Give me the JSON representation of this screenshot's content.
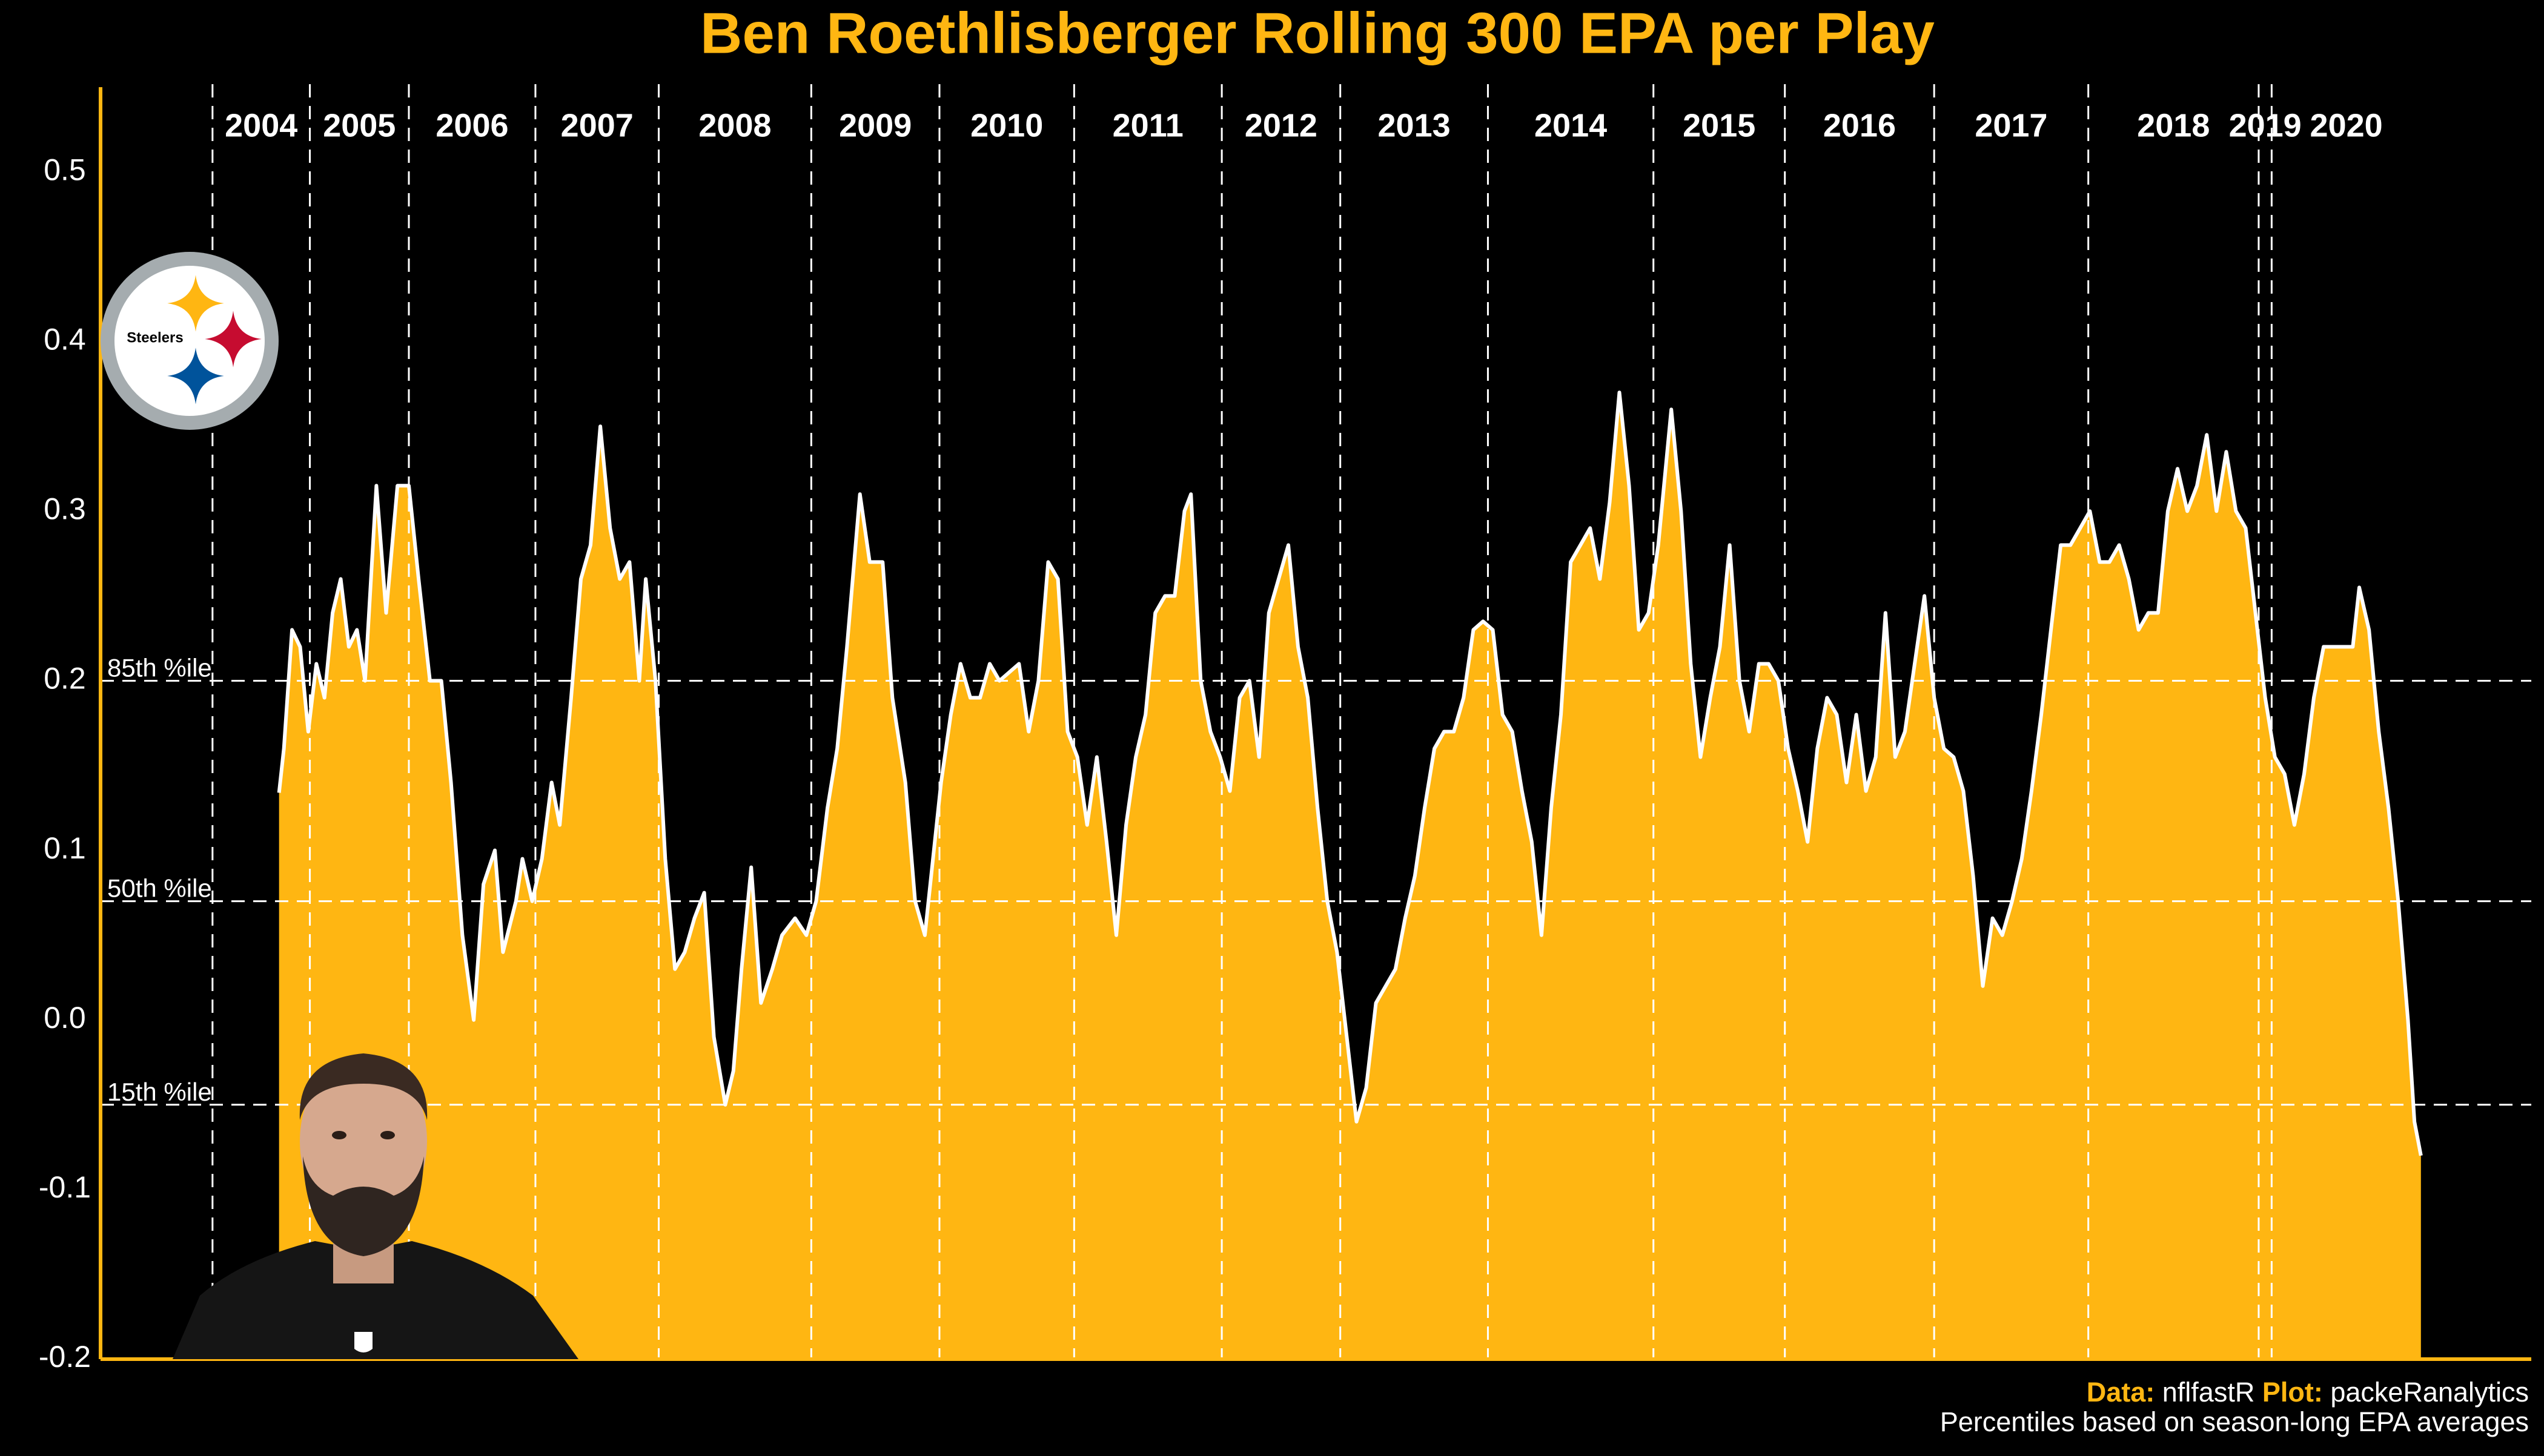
{
  "chart_data": {
    "type": "area",
    "title": "Ben Roethlisberger Rolling 300 EPA per Play",
    "caption_data_label": "Data:",
    "caption_data_value": "nflfastR",
    "caption_plot_label": "Plot:",
    "caption_plot_value": "packeRanalytics",
    "caption_note": "Percentiles based on season-long EPA averages",
    "logo_label": "Steelers",
    "color": "#FFB612",
    "line_color": "#ffffff",
    "axis_color": "#FFB612",
    "xlim": [
      0,
      8988
    ],
    "ylim": [
      -0.2,
      0.55
    ],
    "yticks": [
      -0.2,
      -0.1,
      {
        "value": 0,
        "label": "0.0"
      },
      0.1,
      0.2,
      0.3,
      0.4,
      0.5
    ],
    "reference_lines": [
      {
        "value": 0.2,
        "label": "85th %ile"
      },
      {
        "value": 0.07,
        "label": "50th %ile"
      },
      {
        "value": -0.05,
        "label": "15th %ile"
      }
    ],
    "seasons": [
      {
        "label": "2004",
        "start": 414
      },
      {
        "label": "2005",
        "start": 774
      },
      {
        "label": "2006",
        "start": 1140
      },
      {
        "label": "2007",
        "start": 1608
      },
      {
        "label": "2008",
        "start": 2064
      },
      {
        "label": "2009",
        "start": 2628
      },
      {
        "label": "2010",
        "start": 3102
      },
      {
        "label": "2011",
        "start": 3600
      },
      {
        "label": "2012",
        "start": 4146
      },
      {
        "label": "2013",
        "start": 4584
      },
      {
        "label": "2014",
        "start": 5130
      },
      {
        "label": "2015",
        "start": 5742
      },
      {
        "label": "2016",
        "start": 6228
      },
      {
        "label": "2017",
        "start": 6780
      },
      {
        "label": "2018",
        "start": 7350
      },
      {
        "label": "2019",
        "start": 7980
      },
      {
        "label": "2020",
        "start": 8028
      }
    ],
    "x": [
      660,
      678,
      708,
      738,
      768,
      798,
      828,
      858,
      888,
      918,
      948,
      978,
      1020,
      1056,
      1098,
      1140,
      1176,
      1218,
      1260,
      1296,
      1338,
      1380,
      1416,
      1458,
      1488,
      1536,
      1560,
      1596,
      1632,
      1668,
      1698,
      1740,
      1776,
      1812,
      1848,
      1884,
      1920,
      1956,
      1992,
      2016,
      2052,
      2088,
      2124,
      2160,
      2196,
      2232,
      2268,
      2310,
      2340,
      2370,
      2406,
      2442,
      2484,
      2520,
      2568,
      2610,
      2646,
      2688,
      2724,
      2760,
      2808,
      2844,
      2892,
      2928,
      2976,
      3012,
      3048,
      3078,
      3108,
      3144,
      3180,
      3216,
      3252,
      3288,
      3324,
      3360,
      3396,
      3432,
      3468,
      3504,
      3540,
      3576,
      3612,
      3648,
      3684,
      3720,
      3756,
      3792,
      3828,
      3864,
      3900,
      3936,
      3972,
      4008,
      4032,
      4068,
      4104,
      4140,
      4176,
      4212,
      4248,
      4284,
      4320,
      4356,
      4392,
      4428,
      4464,
      4500,
      4536,
      4572,
      4608,
      4644,
      4680,
      4716,
      4752,
      4788,
      4824,
      4860,
      4896,
      4932,
      4968,
      5004,
      5040,
      5076,
      5112,
      5148,
      5184,
      5220,
      5256,
      5292,
      5328,
      5364,
      5400,
      5436,
      5472,
      5508,
      5544,
      5580,
      5616,
      5652,
      5688,
      5724,
      5760,
      5808,
      5844,
      5880,
      5916,
      5952,
      5988,
      6024,
      6060,
      6096,
      6132,
      6168,
      6204,
      6240,
      6276,
      6312,
      6348,
      6384,
      6420,
      6456,
      6492,
      6528,
      6564,
      6600,
      6636,
      6672,
      6708,
      6744,
      6780,
      6816,
      6852,
      6888,
      6924,
      6960,
      6996,
      7032,
      7068,
      7104,
      7140,
      7176,
      7212,
      7248,
      7284,
      7320,
      7356,
      7392,
      7428,
      7464,
      7500,
      7536,
      7572,
      7608,
      7644,
      7680,
      7716,
      7752,
      7788,
      7824,
      7860,
      7896,
      7932,
      7968,
      8004,
      8040,
      8076,
      8112,
      8148,
      8184,
      8220,
      8256,
      8292,
      8328,
      8352,
      8388,
      8424,
      8460,
      8496,
      8532,
      8556,
      8580
    ],
    "values": [
      0.134,
      0.16,
      0.23,
      0.22,
      0.17,
      0.21,
      0.19,
      0.24,
      0.26,
      0.22,
      0.23,
      0.2,
      0.315,
      0.24,
      0.315,
      0.315,
      0.26,
      0.2,
      0.2,
      0.14,
      0.05,
      0.0,
      0.08,
      0.1,
      0.04,
      0.07,
      0.095,
      0.07,
      0.095,
      0.14,
      0.115,
      0.19,
      0.26,
      0.28,
      0.35,
      0.29,
      0.26,
      0.27,
      0.2,
      0.26,
      0.2,
      0.095,
      0.03,
      0.04,
      0.06,
      0.075,
      -0.01,
      -0.05,
      -0.03,
      0.03,
      0.09,
      0.01,
      0.03,
      0.05,
      0.06,
      0.05,
      0.07,
      0.125,
      0.16,
      0.22,
      0.31,
      0.27,
      0.27,
      0.19,
      0.14,
      0.07,
      0.05,
      0.095,
      0.14,
      0.18,
      0.21,
      0.19,
      0.19,
      0.21,
      0.2,
      0.205,
      0.21,
      0.17,
      0.2,
      0.27,
      0.26,
      0.17,
      0.155,
      0.115,
      0.155,
      0.105,
      0.05,
      0.115,
      0.155,
      0.18,
      0.24,
      0.25,
      0.25,
      0.3,
      0.31,
      0.2,
      0.17,
      0.155,
      0.135,
      0.19,
      0.2,
      0.155,
      0.24,
      0.26,
      0.28,
      0.22,
      0.19,
      0.125,
      0.07,
      0.04,
      -0.01,
      -0.06,
      -0.04,
      0.01,
      0.02,
      0.03,
      0.06,
      0.085,
      0.125,
      0.16,
      0.17,
      0.17,
      0.19,
      0.23,
      0.235,
      0.23,
      0.18,
      0.17,
      0.135,
      0.105,
      0.05,
      0.125,
      0.18,
      0.27,
      0.28,
      0.29,
      0.26,
      0.305,
      0.37,
      0.315,
      0.23,
      0.24,
      0.28,
      0.36,
      0.3,
      0.21,
      0.155,
      0.19,
      0.22,
      0.28,
      0.2,
      0.17,
      0.21,
      0.21,
      0.2,
      0.16,
      0.135,
      0.105,
      0.16,
      0.19,
      0.18,
      0.14,
      0.18,
      0.135,
      0.155,
      0.24,
      0.155,
      0.17,
      0.21,
      0.25,
      0.19,
      0.16,
      0.155,
      0.135,
      0.085,
      0.02,
      0.06,
      0.05,
      0.07,
      0.095,
      0.135,
      0.18,
      0.23,
      0.28,
      0.28,
      0.29,
      0.3,
      0.27,
      0.27,
      0.28,
      0.26,
      0.23,
      0.24,
      0.24,
      0.3,
      0.325,
      0.3,
      0.315,
      0.345,
      0.3,
      0.335,
      0.3,
      0.29,
      0.24,
      0.19,
      0.155,
      0.145,
      0.115,
      0.145,
      0.19,
      0.22,
      0.22,
      0.22,
      0.22,
      0.255,
      0.23,
      0.17,
      0.125,
      0.07,
      0.0,
      -0.06,
      -0.08
    ]
  }
}
